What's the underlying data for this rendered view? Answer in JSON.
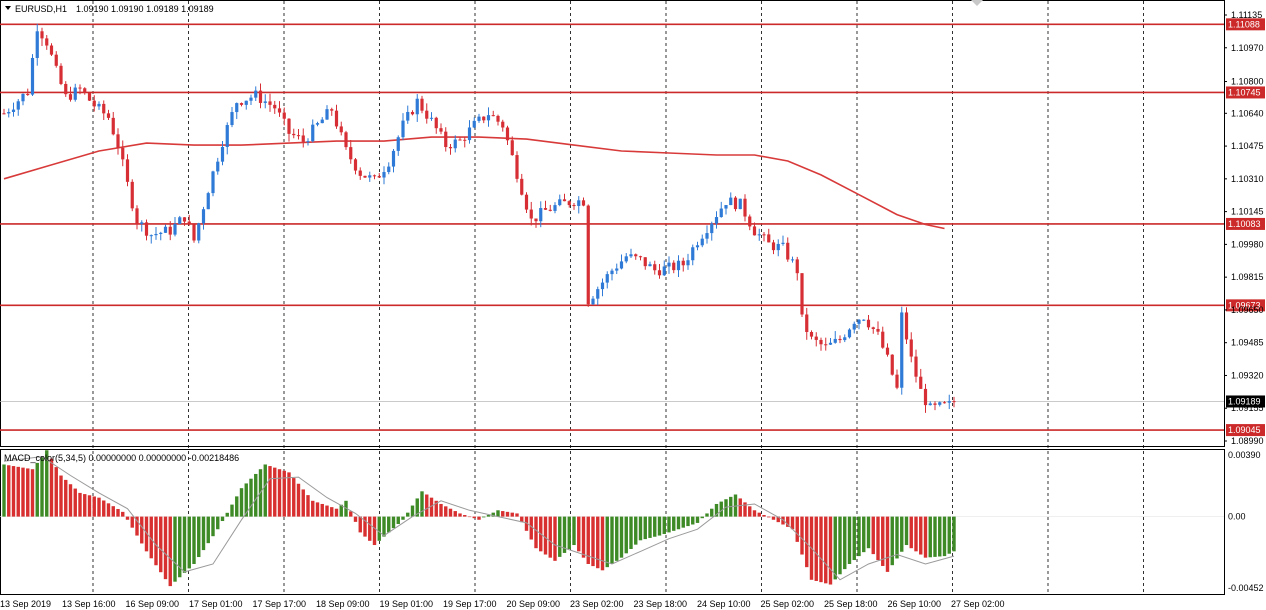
{
  "header": {
    "symbol_label": "EURUSD,H1",
    "ohlc": "1.09190 1.09190 1.09189 1.09189"
  },
  "indicator": {
    "title": "MACD_color(5,34,5) 0.00000000 0.00000000 -0.00218486"
  },
  "icons": {
    "dropdown": "triangle-down-icon"
  },
  "colors": {
    "bull": "#2e7ad6",
    "bear": "#d62e34",
    "level": "#cc2a2a",
    "ma": "#d83a3a",
    "macd_up": "#3d8a26",
    "macd_down": "#d83030",
    "signal": "#9a9a9a",
    "grid": "#000000"
  },
  "chart_data": {
    "type": "candlestick",
    "price_ticks": [
      "1.11135",
      "1.10970",
      "1.10800",
      "1.10640",
      "1.10475",
      "1.10310",
      "1.10145",
      "1.09980",
      "1.09815",
      "1.09650",
      "1.09485",
      "1.09320",
      "1.09155",
      "1.08990"
    ],
    "levels": [
      {
        "price": 1.11088,
        "label": "1.11088"
      },
      {
        "price": 1.10745,
        "label": "1.10745"
      },
      {
        "price": 1.10083,
        "label": "1.10083"
      },
      {
        "price": 1.09673,
        "label": "1.09673"
      },
      {
        "price": 1.09045,
        "label": "1.09045"
      }
    ],
    "current_price": {
      "price": 1.09189,
      "label": "1.09189"
    },
    "macd_ticks": [
      "0.00390",
      "0.00",
      "-0.00452"
    ],
    "time_labels": [
      "13 Sep 2019",
      "13 Sep 16:00",
      "16 Sep 09:00",
      "17 Sep 01:00",
      "17 Sep 17:00",
      "18 Sep 09:00",
      "19 Sep 01:00",
      "19 Sep 17:00",
      "20 Sep 09:00",
      "23 Sep 02:00",
      "23 Sep 18:00",
      "24 Sep 10:00",
      "25 Sep 02:00",
      "25 Sep 18:00",
      "26 Sep 10:00",
      "27 Sep 02:00"
    ],
    "price_path": [
      [
        0,
        1.1064
      ],
      [
        5,
        1.1075
      ],
      [
        7,
        1.1108
      ],
      [
        9,
        1.11
      ],
      [
        11,
        1.1085
      ],
      [
        13,
        1.1072
      ],
      [
        16,
        1.1076
      ],
      [
        19,
        1.1068
      ],
      [
        22,
        1.1062
      ],
      [
        24,
        1.1048
      ],
      [
        26,
        1.1028
      ],
      [
        28,
        1.101
      ],
      [
        31,
        1.1003
      ],
      [
        35,
        1.1005
      ],
      [
        38,
        1.1012
      ],
      [
        40,
        1.1
      ],
      [
        43,
        1.1026
      ],
      [
        46,
        1.105
      ],
      [
        49,
        1.107
      ],
      [
        53,
        1.1073
      ],
      [
        57,
        1.1067
      ],
      [
        60,
        1.1054
      ],
      [
        63,
        1.105
      ],
      [
        66,
        1.1058
      ],
      [
        69,
        1.1066
      ],
      [
        72,
        1.1045
      ],
      [
        75,
        1.1034
      ],
      [
        78,
        1.103
      ],
      [
        81,
        1.104
      ],
      [
        84,
        1.1058
      ],
      [
        87,
        1.107
      ],
      [
        90,
        1.106
      ],
      [
        93,
        1.1048
      ],
      [
        96,
        1.105
      ],
      [
        99,
        1.1058
      ],
      [
        102,
        1.1064
      ],
      [
        105,
        1.1058
      ],
      [
        108,
        1.1034
      ],
      [
        111,
        1.101
      ],
      [
        114,
        1.1015
      ],
      [
        117,
        1.1018
      ],
      [
        120,
        1.102
      ],
      [
        122,
        1.102
      ],
      [
        123,
        1.097
      ],
      [
        125,
        1.0976
      ],
      [
        128,
        1.0985
      ],
      [
        131,
        1.0992
      ],
      [
        134,
        1.099
      ],
      [
        137,
        1.0985
      ],
      [
        140,
        1.0986
      ],
      [
        143,
        1.0988
      ],
      [
        146,
        1.1
      ],
      [
        149,
        1.101
      ],
      [
        152,
        1.102
      ],
      [
        155,
        1.1018
      ],
      [
        158,
        1.1005
      ],
      [
        161,
        1.0998
      ],
      [
        164,
        1.0996
      ],
      [
        167,
        1.0985
      ],
      [
        168,
        1.096
      ],
      [
        170,
        1.095
      ],
      [
        173,
        1.0946
      ],
      [
        176,
        1.095
      ],
      [
        179,
        1.096
      ],
      [
        181,
        1.0962
      ],
      [
        184,
        1.0952
      ],
      [
        186,
        1.094
      ],
      [
        188,
        1.0925
      ],
      [
        189,
        1.0962
      ],
      [
        191,
        1.094
      ],
      [
        193,
        1.0924
      ],
      [
        195,
        1.0915
      ],
      [
        197,
        1.0916
      ],
      [
        199,
        1.0917
      ],
      [
        200,
        1.09189
      ]
    ],
    "ma_path": [
      [
        0,
        1.1031
      ],
      [
        10,
        1.1038
      ],
      [
        20,
        1.1045
      ],
      [
        30,
        1.1049
      ],
      [
        40,
        1.1048
      ],
      [
        50,
        1.1048
      ],
      [
        60,
        1.1049
      ],
      [
        70,
        1.105
      ],
      [
        80,
        1.105
      ],
      [
        90,
        1.1052
      ],
      [
        100,
        1.1052
      ],
      [
        110,
        1.1051
      ],
      [
        120,
        1.1048
      ],
      [
        130,
        1.1045
      ],
      [
        140,
        1.1044
      ],
      [
        150,
        1.1043
      ],
      [
        158,
        1.1043
      ],
      [
        165,
        1.104
      ],
      [
        172,
        1.1033
      ],
      [
        180,
        1.1023
      ],
      [
        188,
        1.1013
      ],
      [
        194,
        1.1008
      ],
      [
        198,
        1.1006
      ]
    ],
    "macd_path": [
      [
        0,
        0.0033
      ],
      [
        6,
        0.003
      ],
      [
        9,
        0.0042
      ],
      [
        12,
        0.0026
      ],
      [
        16,
        0.0015
      ],
      [
        20,
        0.0012
      ],
      [
        25,
        0.0003
      ],
      [
        30,
        -0.0022
      ],
      [
        35,
        -0.0044
      ],
      [
        40,
        -0.003
      ],
      [
        45,
        -0.0008
      ],
      [
        50,
        0.0018
      ],
      [
        55,
        0.0033
      ],
      [
        60,
        0.0028
      ],
      [
        65,
        0.001
      ],
      [
        70,
        0.0005
      ],
      [
        72,
        0.001
      ],
      [
        75,
        -0.001
      ],
      [
        78,
        -0.0018
      ],
      [
        81,
        -0.001
      ],
      [
        84,
        -0.0002
      ],
      [
        88,
        0.0016
      ],
      [
        92,
        0.0008
      ],
      [
        96,
        0.0002
      ],
      [
        100,
        -0.0002
      ],
      [
        104,
        0.0004
      ],
      [
        108,
        0.0002
      ],
      [
        112,
        -0.002
      ],
      [
        116,
        -0.0028
      ],
      [
        120,
        -0.0018
      ],
      [
        123,
        -0.003
      ],
      [
        126,
        -0.0034
      ],
      [
        130,
        -0.0026
      ],
      [
        134,
        -0.0015
      ],
      [
        138,
        -0.0012
      ],
      [
        142,
        -0.0008
      ],
      [
        146,
        -0.0004
      ],
      [
        150,
        0.0008
      ],
      [
        154,
        0.0014
      ],
      [
        158,
        0.0004
      ],
      [
        162,
        -0.0002
      ],
      [
        166,
        -0.0008
      ],
      [
        170,
        -0.004
      ],
      [
        174,
        -0.0043
      ],
      [
        178,
        -0.003
      ],
      [
        182,
        -0.002
      ],
      [
        186,
        -0.0035
      ],
      [
        190,
        -0.0018
      ],
      [
        194,
        -0.0026
      ],
      [
        198,
        -0.0025
      ],
      [
        200,
        -0.0022
      ]
    ],
    "signal_path": [
      [
        0,
        0.0035
      ],
      [
        8,
        0.0038
      ],
      [
        14,
        0.0026
      ],
      [
        20,
        0.0015
      ],
      [
        26,
        0.0005
      ],
      [
        32,
        -0.0018
      ],
      [
        38,
        -0.0035
      ],
      [
        44,
        -0.003
      ],
      [
        50,
        -0.0002
      ],
      [
        56,
        0.0024
      ],
      [
        62,
        0.0025
      ],
      [
        68,
        0.0012
      ],
      [
        74,
        0.0002
      ],
      [
        80,
        -0.0012
      ],
      [
        86,
        0.0
      ],
      [
        92,
        0.001
      ],
      [
        98,
        0.0004
      ],
      [
        104,
        0.0
      ],
      [
        110,
        -0.0004
      ],
      [
        116,
        -0.0018
      ],
      [
        122,
        -0.0024
      ],
      [
        128,
        -0.003
      ],
      [
        134,
        -0.0022
      ],
      [
        140,
        -0.0014
      ],
      [
        146,
        -0.0008
      ],
      [
        152,
        0.0006
      ],
      [
        158,
        0.0008
      ],
      [
        164,
        -0.0002
      ],
      [
        170,
        -0.002
      ],
      [
        176,
        -0.004
      ],
      [
        182,
        -0.003
      ],
      [
        188,
        -0.0024
      ],
      [
        194,
        -0.003
      ],
      [
        200,
        -0.0025
      ]
    ]
  }
}
